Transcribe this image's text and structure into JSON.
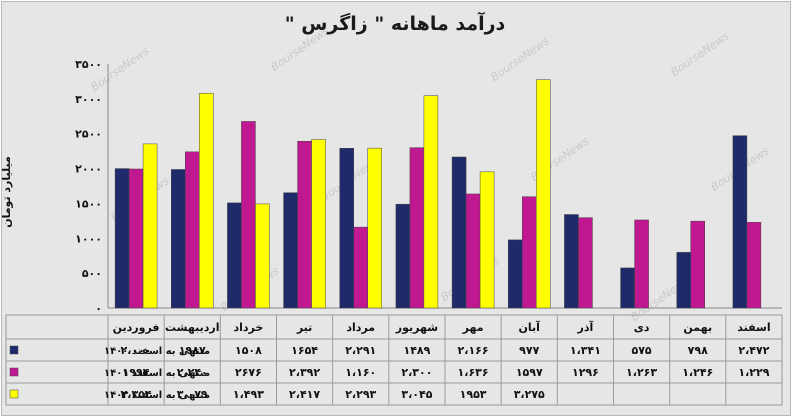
{
  "chart_data": {
    "type": "bar",
    "title": "درآمد ماهانه \" زاگرس \"",
    "ylabel": "میلیارد تومان",
    "ylim": [
      0,
      3500
    ],
    "yticks": [
      "۰",
      "۵۰۰",
      "۱۰۰۰",
      "۱۵۰۰",
      "۲۰۰۰",
      "۲۵۰۰",
      "۳۰۰۰",
      "۳۵۰۰"
    ],
    "ytick_values": [
      0,
      500,
      1000,
      1500,
      2000,
      2500,
      3000,
      3500
    ],
    "categories": [
      "فروردین",
      "اردیبهشت",
      "خرداد",
      "تیر",
      "مرداد",
      "شهریور",
      "مهر",
      "آبان",
      "آذر",
      "دی",
      "بهمن",
      "اسفند"
    ],
    "series": [
      {
        "name": "منتهی به اسفند ۱۴۰۰",
        "color": "#1f2a6b",
        "values": [
          2000,
          1987,
          1508,
          1654,
          2291,
          1489,
          2166,
          977,
          1341,
          575,
          798,
          2472
        ],
        "labels": [
          "۲،۰۰۰",
          "۱۹۸۷",
          "۱۵۰۸",
          "۱۶۵۴",
          "۲،۲۹۱",
          "۱۴۸۹",
          "۲،۱۶۶",
          "۹۷۷",
          "۱،۳۴۱",
          "۵۷۵",
          "۷۹۸",
          "۲،۴۷۲"
        ]
      },
      {
        "name": "منتهی به اسفند ۱۴۰۱",
        "color": "#c01890",
        "values": [
          1994,
          2240,
          2676,
          2392,
          1160,
          2300,
          1636,
          1597,
          1296,
          1263,
          1246,
          1229
        ],
        "labels": [
          "۱۹۹۴",
          "۲،۲۴۰",
          "۲۶۷۶",
          "۲،۳۹۲",
          "۱،۱۶۰",
          "۲،۳۰۰",
          "۱،۶۳۶",
          "۱۵۹۷",
          "۱۲۹۶",
          "۱،۲۶۳",
          "۱،۲۴۶",
          "۱،۲۲۹"
        ]
      },
      {
        "name": "منتهی به اسفند ۱۴۰۲",
        "color": "#ffff00",
        "values": [
          2354,
          3079,
          1493,
          2417,
          2293,
          3045,
          1953,
          3275,
          null,
          null,
          null,
          null
        ],
        "labels": [
          "۲،۳۵۴",
          "۳،۰۷۹",
          "۱،۴۹۳",
          "۲،۴۱۷",
          "۲،۲۹۳",
          "۳،۰۴۵",
          "۱۹۵۳",
          "۳،۲۷۵",
          "",
          "",
          "",
          ""
        ]
      }
    ],
    "watermark": "BourseNews",
    "grid": false,
    "legend": "data-table"
  }
}
